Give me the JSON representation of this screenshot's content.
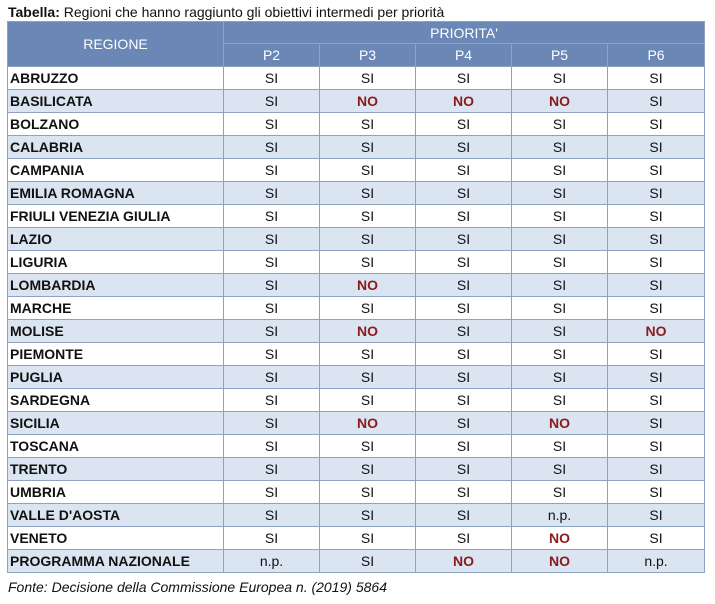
{
  "caption": {
    "label": "Tabella:",
    "text": "Regioni che hanno raggiunto gli obiettivi intermedi per priorità"
  },
  "header": {
    "region_label": "REGIONE",
    "priority_label": "PRIORITA'",
    "columns": [
      "P2",
      "P3",
      "P4",
      "P5",
      "P6"
    ]
  },
  "rows": [
    {
      "region": "ABRUZZO",
      "values": [
        "SI",
        "SI",
        "SI",
        "SI",
        "SI"
      ]
    },
    {
      "region": "BASILICATA",
      "values": [
        "SI",
        "NO",
        "NO",
        "NO",
        "SI"
      ]
    },
    {
      "region": "BOLZANO",
      "values": [
        "SI",
        "SI",
        "SI",
        "SI",
        "SI"
      ]
    },
    {
      "region": "CALABRIA",
      "values": [
        "SI",
        "SI",
        "SI",
        "SI",
        "SI"
      ]
    },
    {
      "region": "CAMPANIA",
      "values": [
        "SI",
        "SI",
        "SI",
        "SI",
        "SI"
      ]
    },
    {
      "region": "EMILIA ROMAGNA",
      "values": [
        "SI",
        "SI",
        "SI",
        "SI",
        "SI"
      ]
    },
    {
      "region": "FRIULI VENEZIA GIULIA",
      "values": [
        "SI",
        "SI",
        "SI",
        "SI",
        "SI"
      ]
    },
    {
      "region": "LAZIO",
      "values": [
        "SI",
        "SI",
        "SI",
        "SI",
        "SI"
      ]
    },
    {
      "region": "LIGURIA",
      "values": [
        "SI",
        "SI",
        "SI",
        "SI",
        "SI"
      ]
    },
    {
      "region": "LOMBARDIA",
      "values": [
        "SI",
        "NO",
        "SI",
        "SI",
        "SI"
      ]
    },
    {
      "region": "MARCHE",
      "values": [
        "SI",
        "SI",
        "SI",
        "SI",
        "SI"
      ]
    },
    {
      "region": "MOLISE",
      "values": [
        "SI",
        "NO",
        "SI",
        "SI",
        "NO"
      ]
    },
    {
      "region": "PIEMONTE",
      "values": [
        "SI",
        "SI",
        "SI",
        "SI",
        "SI"
      ]
    },
    {
      "region": "PUGLIA",
      "values": [
        "SI",
        "SI",
        "SI",
        "SI",
        "SI"
      ]
    },
    {
      "region": "SARDEGNA",
      "values": [
        "SI",
        "SI",
        "SI",
        "SI",
        "SI"
      ]
    },
    {
      "region": "SICILIA",
      "values": [
        "SI",
        "NO",
        "SI",
        "NO",
        "SI"
      ]
    },
    {
      "region": "TOSCANA",
      "values": [
        "SI",
        "SI",
        "SI",
        "SI",
        "SI"
      ]
    },
    {
      "region": "TRENTO",
      "values": [
        "SI",
        "SI",
        "SI",
        "SI",
        "SI"
      ]
    },
    {
      "region": "UMBRIA",
      "values": [
        "SI",
        "SI",
        "SI",
        "SI",
        "SI"
      ]
    },
    {
      "region": "VALLE D'AOSTA",
      "values": [
        "SI",
        "SI",
        "SI",
        "n.p.",
        "SI"
      ]
    },
    {
      "region": "VENETO",
      "values": [
        "SI",
        "SI",
        "SI",
        "NO",
        "SI"
      ]
    },
    {
      "region": "PROGRAMMA NAZIONALE",
      "values": [
        "n.p.",
        "SI",
        "NO",
        "NO",
        "n.p."
      ]
    }
  ],
  "source": "Fonte: Decisione della Commissione Europea n. (2019) 5864",
  "colors": {
    "header_bg": "#6a87b6",
    "stripe": "#dbe5f1",
    "no_text": "#8b1a1a",
    "border": "#8ea3c2"
  }
}
